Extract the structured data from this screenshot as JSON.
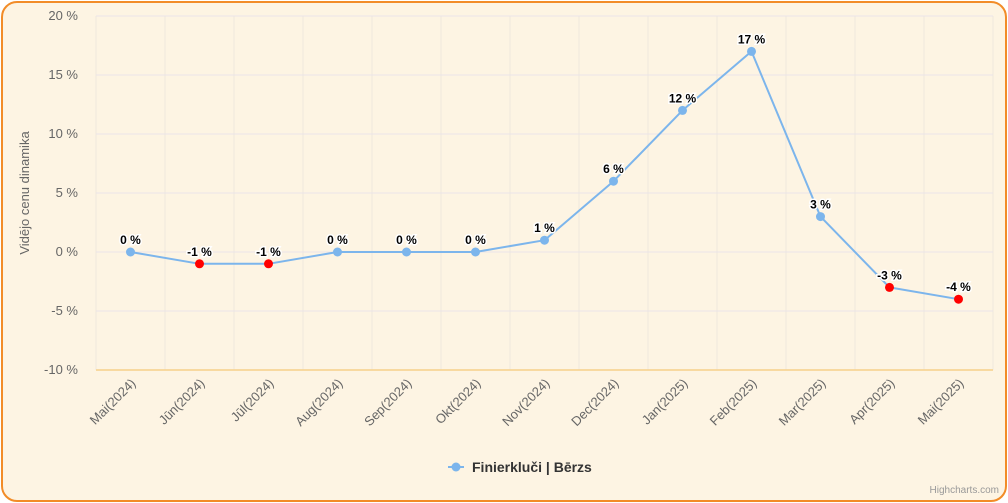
{
  "chart_data": {
    "type": "line",
    "title": "",
    "xlabel": "",
    "ylabel": "Vidējo cenu dinamika",
    "ylim": [
      -10,
      20
    ],
    "yticks": [
      -10,
      -5,
      0,
      5,
      10,
      15,
      20
    ],
    "ytick_labels": [
      "-10 %",
      "-5 %",
      "0 %",
      "5 %",
      "10 %",
      "15 %",
      "20 %"
    ],
    "categories": [
      "Mai(2024)",
      "Jūn(2024)",
      "Jūl(2024)",
      "Aug(2024)",
      "Sep(2024)",
      "Okt(2024)",
      "Nov(2024)",
      "Dec(2024)",
      "Jan(2025)",
      "Feb(2025)",
      "Mar(2025)",
      "Apr(2025)",
      "Mai(2025)"
    ],
    "series": [
      {
        "name": "Finierkluči | Bērzs",
        "values": [
          0,
          -1,
          -1,
          0,
          0,
          0,
          1,
          6,
          12,
          17,
          3,
          -3,
          -4
        ],
        "data_labels": [
          "0 %",
          "-1 %",
          "-1 %",
          "0 %",
          "0 %",
          "0 %",
          "1 %",
          "6 %",
          "12 %",
          "17 %",
          "3 %",
          "-3 %",
          "-4 %"
        ],
        "color": "#7cb5ec",
        "negative_point_color": "#ff0000"
      }
    ],
    "grid": true,
    "legend_position": "bottom-center"
  },
  "credits": "Highcharts.com"
}
